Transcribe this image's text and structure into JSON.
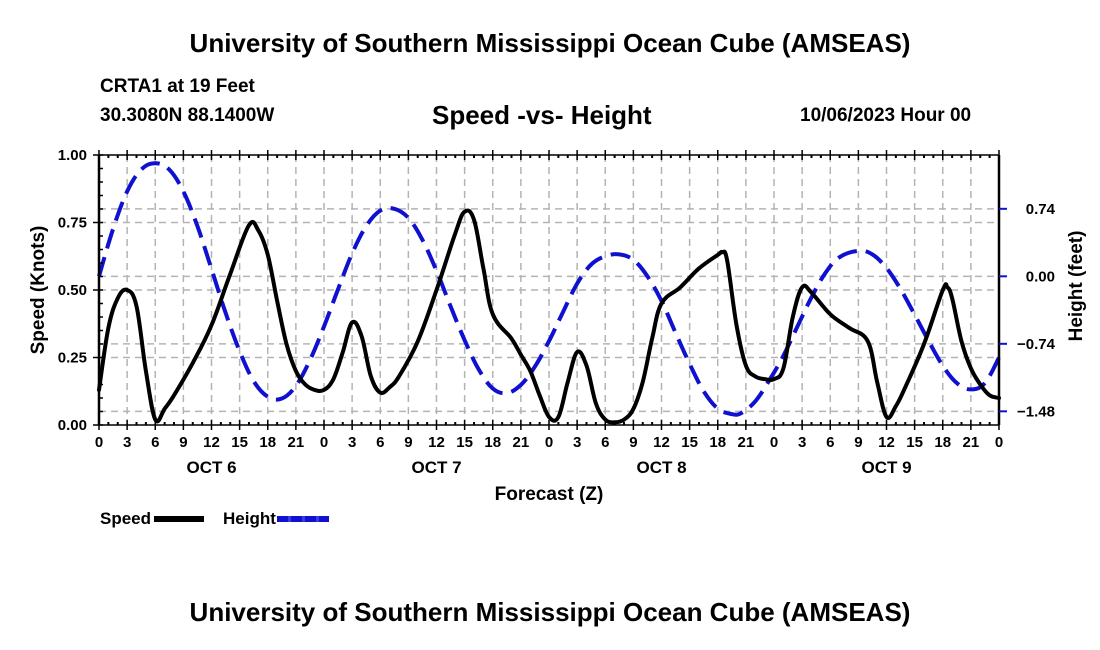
{
  "header": {
    "title": "University of Southern Mississippi Ocean Cube (AMSEAS)",
    "station": "CRTA1 at 19 Feet",
    "coordinates": "30.3080N  88.1400W",
    "subtitle": "Speed -vs- Height",
    "date": "10/06/2023 Hour 00"
  },
  "footer": {
    "title": "University of Southern Mississippi Ocean Cube (AMSEAS)"
  },
  "legend": {
    "speed_label": "Speed",
    "height_label": "Height"
  },
  "chart_data": {
    "type": "line",
    "title": "Speed -vs- Height",
    "xlabel": "Forecast (Z)",
    "ylabel": "Speed (Knots)",
    "y2label": "Height (feet)",
    "xlim": [
      0,
      96
    ],
    "ylim": [
      0,
      1.0
    ],
    "y2lim": [
      -1.63,
      1.33
    ],
    "grid": true,
    "legend_position": "bottom-left",
    "x_tick_hours": [
      0,
      3,
      6,
      9,
      12,
      15,
      18,
      21,
      24,
      27,
      30,
      33,
      36,
      39,
      42,
      45,
      48,
      51,
      54,
      57,
      60,
      63,
      66,
      69,
      72,
      75,
      78,
      81,
      84,
      87,
      90,
      93,
      96
    ],
    "x_tick_labels": [
      "0",
      "3",
      "6",
      "9",
      "12",
      "15",
      "18",
      "21",
      "0",
      "3",
      "6",
      "9",
      "12",
      "15",
      "18",
      "21",
      "0",
      "3",
      "6",
      "9",
      "12",
      "15",
      "18",
      "21",
      "0",
      "3",
      "6",
      "9",
      "12",
      "15",
      "18",
      "21",
      "0"
    ],
    "day_labels": [
      {
        "label": "OCT 6",
        "center_hour": 12
      },
      {
        "label": "OCT 7",
        "center_hour": 36
      },
      {
        "label": "OCT 8",
        "center_hour": 60
      },
      {
        "label": "OCT 9",
        "center_hour": 84
      }
    ],
    "y_ticks": [
      0,
      0.25,
      0.5,
      0.75,
      1.0
    ],
    "y_tick_labels": [
      "0.00",
      "0.25",
      "0.50",
      "0.75",
      "1.00"
    ],
    "y2_ticks": [
      0.74,
      0.0,
      -0.74,
      -1.48
    ],
    "y2_tick_labels": [
      "0.74",
      "0.00",
      "−0.74",
      "−1.48"
    ],
    "series": [
      {
        "name": "Speed",
        "axis": "left",
        "color": "#000000",
        "style": "solid",
        "x": [
          0,
          1,
          2,
          3,
          4,
          5,
          6,
          7,
          8,
          10,
          12,
          14,
          16,
          17,
          18,
          19,
          20,
          21,
          22,
          23,
          24,
          25,
          26,
          27,
          28,
          29,
          30,
          31,
          32,
          34,
          36,
          38,
          39,
          40,
          41,
          42,
          44,
          45,
          46,
          47,
          48,
          49,
          50,
          51,
          52,
          53,
          54,
          55,
          56,
          57,
          58,
          59,
          60,
          62,
          64,
          66,
          66.5,
          67,
          68,
          69,
          70,
          71,
          72,
          73,
          74,
          75,
          76,
          78,
          80,
          82,
          83,
          84,
          85,
          86,
          88,
          90,
          90.5,
          91,
          92,
          93,
          94,
          95,
          96
        ],
        "values": [
          0.13,
          0.36,
          0.47,
          0.5,
          0.44,
          0.2,
          0.02,
          0.06,
          0.11,
          0.23,
          0.37,
          0.56,
          0.74,
          0.72,
          0.63,
          0.46,
          0.3,
          0.2,
          0.15,
          0.13,
          0.13,
          0.17,
          0.27,
          0.38,
          0.33,
          0.18,
          0.12,
          0.14,
          0.18,
          0.31,
          0.5,
          0.71,
          0.79,
          0.76,
          0.58,
          0.41,
          0.32,
          0.26,
          0.2,
          0.11,
          0.03,
          0.03,
          0.16,
          0.27,
          0.22,
          0.08,
          0.02,
          0.01,
          0.02,
          0.06,
          0.16,
          0.32,
          0.45,
          0.51,
          0.58,
          0.63,
          0.64,
          0.61,
          0.37,
          0.22,
          0.18,
          0.17,
          0.17,
          0.21,
          0.4,
          0.51,
          0.49,
          0.41,
          0.36,
          0.31,
          0.16,
          0.03,
          0.07,
          0.14,
          0.3,
          0.5,
          0.51,
          0.47,
          0.31,
          0.21,
          0.15,
          0.11,
          0.1
        ]
      },
      {
        "name": "Height",
        "axis": "right",
        "color": "#1010d0",
        "style": "dashed",
        "x": [
          0,
          1.5,
          3,
          4.5,
          6,
          7.5,
          9,
          10.5,
          12,
          13.5,
          15,
          16.5,
          18,
          19.5,
          21,
          22.5,
          24,
          25.5,
          27,
          28.5,
          30,
          31.5,
          33,
          34.5,
          36,
          37.5,
          39,
          40.5,
          42,
          43.5,
          45,
          46.5,
          48,
          49.5,
          51,
          52.5,
          54,
          55.5,
          57,
          58.5,
          60,
          61.5,
          63,
          64.5,
          66,
          67.5,
          68.5,
          70,
          71.5,
          73,
          74.5,
          76,
          77.5,
          79,
          81,
          82.5,
          84,
          85.5,
          87,
          88.5,
          90,
          91.5,
          93,
          94.5,
          96
        ],
        "values": [
          0.0,
          0.52,
          0.93,
          1.17,
          1.24,
          1.17,
          0.93,
          0.55,
          0.08,
          -0.4,
          -0.82,
          -1.15,
          -1.32,
          -1.34,
          -1.2,
          -0.92,
          -0.55,
          -0.14,
          0.25,
          0.55,
          0.72,
          0.74,
          0.64,
          0.4,
          0.06,
          -0.33,
          -0.7,
          -1.02,
          -1.23,
          -1.28,
          -1.19,
          -0.99,
          -0.71,
          -0.39,
          -0.08,
          0.13,
          0.22,
          0.24,
          0.18,
          0.0,
          -0.27,
          -0.62,
          -0.96,
          -1.26,
          -1.45,
          -1.51,
          -1.5,
          -1.37,
          -1.14,
          -0.87,
          -0.55,
          -0.23,
          0.04,
          0.21,
          0.28,
          0.24,
          0.09,
          -0.14,
          -0.42,
          -0.71,
          -0.98,
          -1.17,
          -1.24,
          -1.17,
          -0.89
        ]
      }
    ]
  }
}
